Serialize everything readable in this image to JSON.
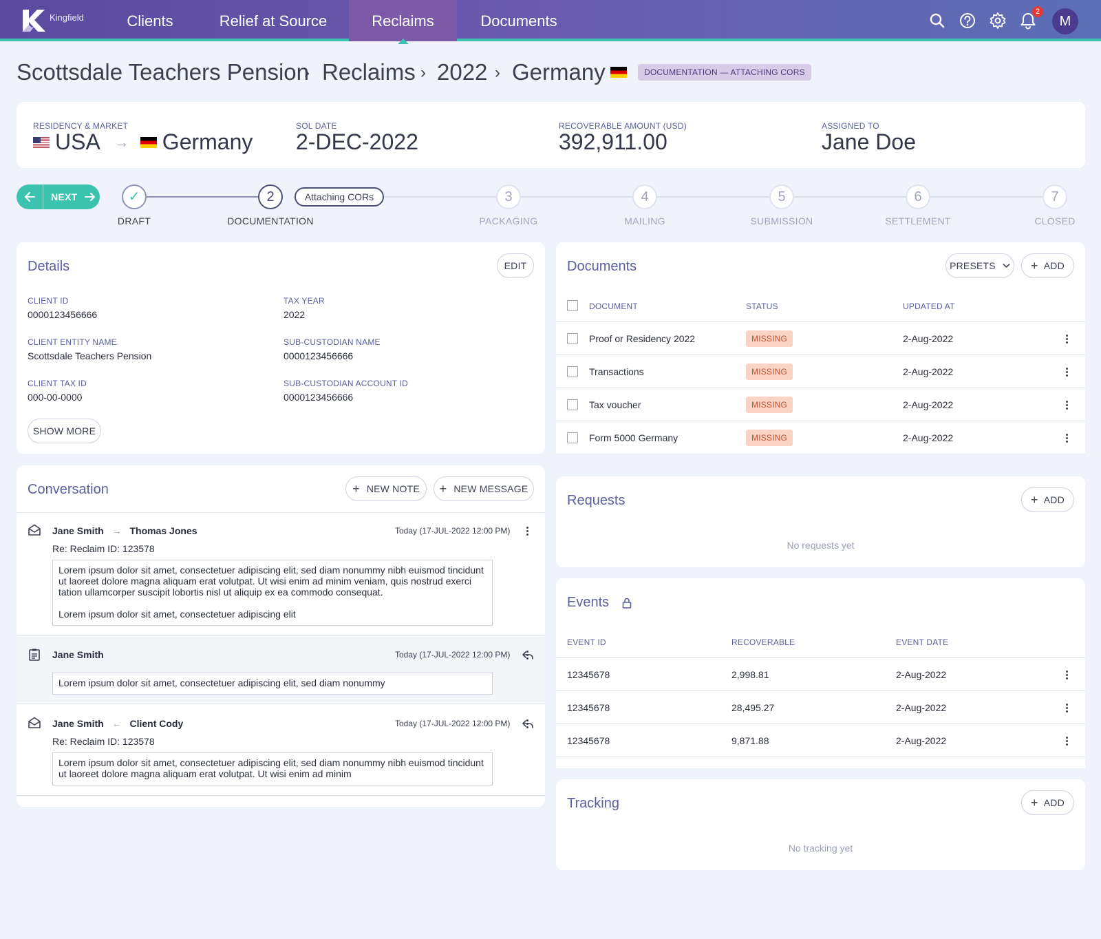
{
  "nav": {
    "logo_text": "Kingfield",
    "tabs": [
      {
        "label": "Clients"
      },
      {
        "label": "Relief at Source"
      },
      {
        "label": "Reclaims"
      },
      {
        "label": "Documents"
      }
    ],
    "active_tab": "Reclaims",
    "notification_count": "2",
    "avatar_initial": "M",
    "icons": [
      "search-icon",
      "help-icon",
      "gear-icon",
      "bell-icon"
    ]
  },
  "breadcrumb": {
    "items": [
      "Scottsdale Teachers Pension",
      "Reclaims",
      "2022",
      "Germany"
    ],
    "separator": "›",
    "status": "DOCUMENTATION — ATTACHING CORS"
  },
  "summary": {
    "residency_label": "RESIDENCY & MARKET",
    "residency_from": "USA",
    "residency_to": "Germany",
    "sol_label": "SOL DATE",
    "sol_value": "2-DEC-2022",
    "amount_label": "RECOVERABLE AMOUNT (USD)",
    "amount_value": "392,911.00",
    "assigned_label": "ASSIGNED TO",
    "assigned_value": "Jane Doe"
  },
  "stepper": {
    "next_label": "NEXT",
    "substep_label": "Attaching CORs",
    "steps": [
      {
        "num": "✓",
        "label": "DRAFT",
        "state": "done"
      },
      {
        "num": "2",
        "label": "DOCUMENTATION",
        "state": "current"
      },
      {
        "num": "3",
        "label": "PACKAGING",
        "state": "pending"
      },
      {
        "num": "4",
        "label": "MAILING",
        "state": "pending"
      },
      {
        "num": "5",
        "label": "SUBMISSION",
        "state": "pending"
      },
      {
        "num": "6",
        "label": "SETTLEMENT",
        "state": "pending"
      },
      {
        "num": "7",
        "label": "CLOSED",
        "state": "pending"
      }
    ]
  },
  "details": {
    "title": "Details",
    "edit_label": "EDIT",
    "show_more_label": "SHOW MORE",
    "fields": [
      {
        "label": "CLIENT ID",
        "value": "0000123456666"
      },
      {
        "label": "TAX YEAR",
        "value": "2022"
      },
      {
        "label": "CLIENT ENTITY NAME",
        "value": "Scottsdale Teachers Pension"
      },
      {
        "label": "SUB-CUSTODIAN NAME",
        "value": "0000123456666"
      },
      {
        "label": "CLIENT TAX ID",
        "value": "000-00-0000"
      },
      {
        "label": "SUB-CUSTODIAN ACCOUNT ID",
        "value": "0000123456666"
      }
    ]
  },
  "documents": {
    "title": "Documents",
    "presets_label": "PRESETS",
    "add_label": "ADD",
    "columns": [
      "DOCUMENT",
      "STATUS",
      "UPDATED AT"
    ],
    "rows": [
      {
        "name": "Proof or Residency 2022",
        "status": "MISSING",
        "updated": "2-Aug-2022"
      },
      {
        "name": "Transactions",
        "status": "MISSING",
        "updated": "2-Aug-2022"
      },
      {
        "name": "Tax voucher",
        "status": "MISSING",
        "updated": "2-Aug-2022"
      },
      {
        "name": "Form 5000 Germany",
        "status": "MISSING",
        "updated": "2-Aug-2022"
      }
    ]
  },
  "requests": {
    "title": "Requests",
    "add_label": "ADD",
    "empty": "No requests yet"
  },
  "events": {
    "title": "Events",
    "columns": [
      "EVENT ID",
      "RECOVERABLE",
      "EVENT DATE"
    ],
    "rows": [
      {
        "id": "12345678",
        "recoverable": "2,998.81",
        "date": "2-Aug-2022"
      },
      {
        "id": "12345678",
        "recoverable": "28,495.27",
        "date": "2-Aug-2022"
      },
      {
        "id": "12345678",
        "recoverable": "9,871.88",
        "date": "2-Aug-2022"
      }
    ]
  },
  "tracking": {
    "title": "Tracking",
    "add_label": "ADD",
    "empty": "No tracking yet"
  },
  "conversation": {
    "title": "Conversation",
    "new_note_label": "NEW NOTE",
    "new_message_label": "NEW MESSAGE",
    "messages": [
      {
        "type": "message",
        "from": "Jane Smith",
        "to": "Thomas Jones",
        "direction": "out",
        "time": "Today (17-JUL-2022 12:00 PM)",
        "subject": "Re: Reclaim ID: 123578",
        "body1": "Lorem ipsum dolor sit amet, consectetuer adipiscing elit, sed diam nonummy nibh euismod tincidunt ut laoreet dolore magna aliquam erat volutpat. Ut wisi enim ad minim veniam, quis nostrud exerci tation ullamcorper suscipit lobortis nisl ut aliquip ex ea commodo consequat.",
        "body2": "Lorem ipsum dolor sit amet, consectetuer adipiscing elit"
      },
      {
        "type": "note",
        "from": "Jane Smith",
        "time": "Today (17-JUL-2022 12:00 PM)",
        "body1": "Lorem ipsum dolor sit amet, consectetuer adipiscing elit, sed diam nonummy"
      },
      {
        "type": "message",
        "from": "Jane Smith",
        "to": "Client Cody",
        "direction": "in",
        "time": "Today (17-JUL-2022 12:00 PM)",
        "subject": "Re: Reclaim ID: 123578",
        "body1": "Lorem ipsum dolor sit amet, consectetuer adipiscing elit, sed diam nonummy nibh euismod tincidunt ut laoreet dolore magna aliquam erat volutpat. Ut wisi enim ad minim"
      }
    ]
  },
  "colors": {
    "accent_teal": "#3cc3b0",
    "brand_purple": "#5a4aa0",
    "label_blue": "#5b5f9e",
    "missing_bg": "#fad3c5",
    "missing_text": "#c2542c"
  }
}
